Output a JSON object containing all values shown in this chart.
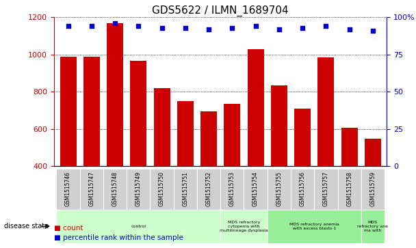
{
  "title": "GDS5622 / ILMN_1689704",
  "samples": [
    "GSM1515746",
    "GSM1515747",
    "GSM1515748",
    "GSM1515749",
    "GSM1515750",
    "GSM1515751",
    "GSM1515752",
    "GSM1515753",
    "GSM1515754",
    "GSM1515755",
    "GSM1515756",
    "GSM1515757",
    "GSM1515758",
    "GSM1515759"
  ],
  "counts": [
    990,
    990,
    1170,
    965,
    820,
    750,
    695,
    735,
    1030,
    835,
    710,
    985,
    605,
    548
  ],
  "percentiles": [
    94,
    94,
    96,
    94,
    93,
    93,
    92,
    93,
    94,
    92,
    93,
    94,
    92,
    91
  ],
  "ylim_left": [
    400,
    1200
  ],
  "ylim_right": [
    0,
    100
  ],
  "yticks_left": [
    400,
    600,
    800,
    1000,
    1200
  ],
  "yticks_right": [
    0,
    25,
    50,
    75,
    100
  ],
  "ytick_right_labels": [
    "0",
    "25",
    "50",
    "75",
    "100%"
  ],
  "bar_color": "#cc0000",
  "scatter_color": "#0000cc",
  "title_fontsize": 11,
  "groups": [
    {
      "label": "control",
      "start": 0,
      "end": 7,
      "color": "#ccffcc"
    },
    {
      "label": "MDS refractory\ncytopenia with\nmultilineage dysplasia",
      "start": 7,
      "end": 9,
      "color": "#ccffcc"
    },
    {
      "label": "MDS refractory anemia\nwith excess blasts-1",
      "start": 9,
      "end": 13,
      "color": "#99ee99"
    },
    {
      "label": "MDS\nrefractory ane\nma with",
      "start": 13,
      "end": 14,
      "color": "#99ee99"
    }
  ],
  "ylabel_left_color": "#cc0000",
  "ylabel_right_color": "#0000cc",
  "sample_box_color": "#d0d0d0",
  "bg_color": "#ffffff"
}
